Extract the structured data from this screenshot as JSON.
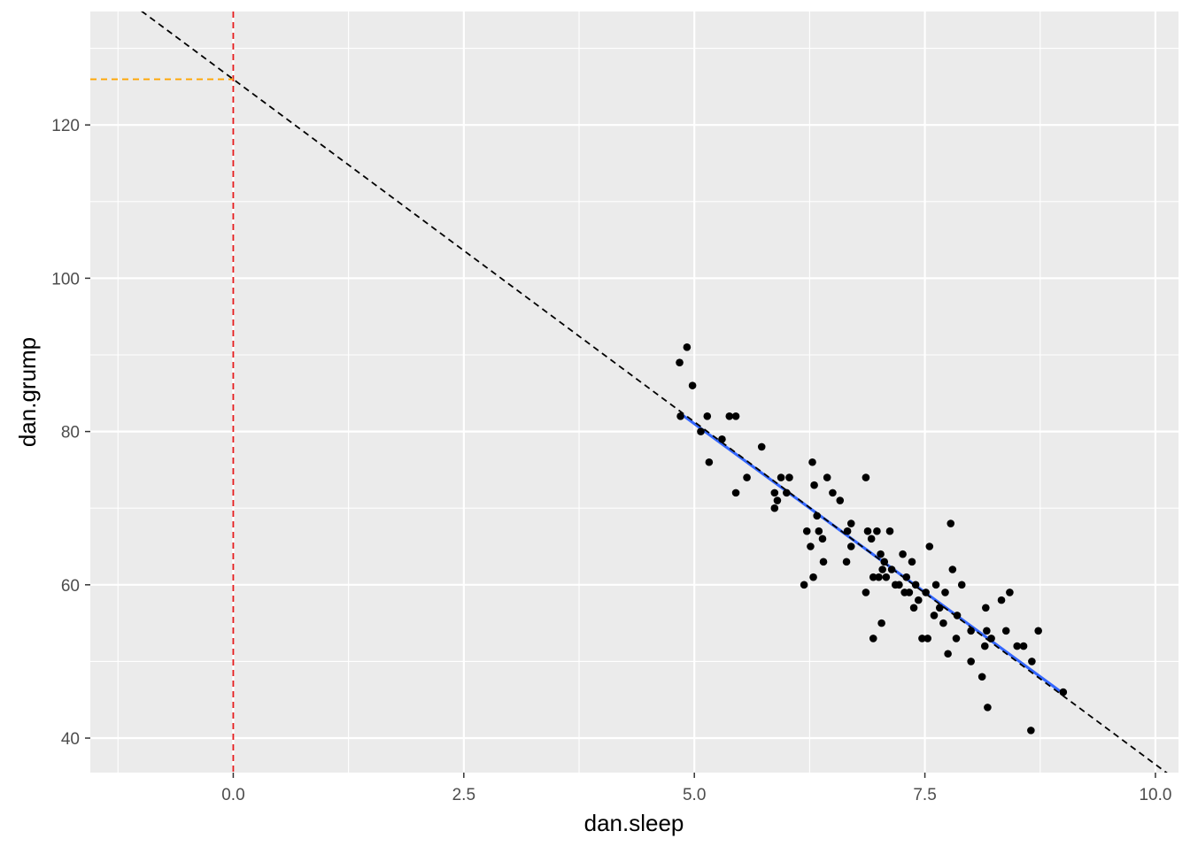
{
  "chart_data": {
    "type": "scatter",
    "xlabel": "dan.sleep",
    "ylabel": "dan.grump",
    "xlim": [
      -1.55,
      10.25
    ],
    "ylim": [
      35.5,
      134.8
    ],
    "x_ticks": [
      0.0,
      2.5,
      5.0,
      7.5,
      10.0
    ],
    "x_tick_labels": [
      "0.0",
      "2.5",
      "5.0",
      "7.5",
      "10.0"
    ],
    "y_ticks": [
      40,
      60,
      80,
      100,
      120
    ],
    "y_tick_labels": [
      "40",
      "60",
      "80",
      "100",
      "120"
    ],
    "grid": true,
    "panel_background": "#ebebeb",
    "grid_color": "#ffffff",
    "points_color": "#000000",
    "series": [
      {
        "type": "scatter",
        "points": [
          [
            4.84,
            89
          ],
          [
            4.92,
            91
          ],
          [
            4.98,
            86
          ],
          [
            4.85,
            82
          ],
          [
            5.07,
            80
          ],
          [
            5.14,
            82
          ],
          [
            5.16,
            76
          ],
          [
            5.3,
            79
          ],
          [
            5.38,
            82
          ],
          [
            5.45,
            82
          ],
          [
            5.45,
            72
          ],
          [
            5.57,
            74
          ],
          [
            5.73,
            78
          ],
          [
            5.87,
            70
          ],
          [
            5.87,
            72
          ],
          [
            5.9,
            71
          ],
          [
            5.94,
            74
          ],
          [
            6.0,
            72
          ],
          [
            6.03,
            74
          ],
          [
            6.19,
            60
          ],
          [
            6.22,
            67
          ],
          [
            6.26,
            65
          ],
          [
            6.28,
            76
          ],
          [
            6.29,
            61
          ],
          [
            6.3,
            73
          ],
          [
            6.33,
            69
          ],
          [
            6.35,
            67
          ],
          [
            6.39,
            66
          ],
          [
            6.4,
            63
          ],
          [
            6.44,
            74
          ],
          [
            6.5,
            72
          ],
          [
            6.58,
            71
          ],
          [
            6.65,
            63
          ],
          [
            6.66,
            67
          ],
          [
            6.7,
            65
          ],
          [
            6.7,
            68
          ],
          [
            6.86,
            74
          ],
          [
            6.86,
            59
          ],
          [
            6.88,
            67
          ],
          [
            6.92,
            66
          ],
          [
            6.94,
            61
          ],
          [
            6.94,
            53
          ],
          [
            6.98,
            67
          ],
          [
            7.0,
            61
          ],
          [
            7.02,
            64
          ],
          [
            7.03,
            55
          ],
          [
            7.04,
            62
          ],
          [
            7.06,
            63
          ],
          [
            7.08,
            61
          ],
          [
            7.12,
            67
          ],
          [
            7.14,
            62
          ],
          [
            7.18,
            60
          ],
          [
            7.22,
            60
          ],
          [
            7.26,
            64
          ],
          [
            7.28,
            59
          ],
          [
            7.3,
            61
          ],
          [
            7.33,
            59
          ],
          [
            7.36,
            63
          ],
          [
            7.38,
            57
          ],
          [
            7.4,
            60
          ],
          [
            7.43,
            58
          ],
          [
            7.47,
            53
          ],
          [
            7.51,
            59
          ],
          [
            7.53,
            53
          ],
          [
            7.55,
            65
          ],
          [
            7.6,
            56
          ],
          [
            7.62,
            60
          ],
          [
            7.66,
            57
          ],
          [
            7.7,
            55
          ],
          [
            7.72,
            59
          ],
          [
            7.75,
            51
          ],
          [
            7.78,
            68
          ],
          [
            7.8,
            62
          ],
          [
            7.84,
            53
          ],
          [
            7.85,
            56
          ],
          [
            7.9,
            60
          ],
          [
            8.0,
            54
          ],
          [
            8.0,
            50
          ],
          [
            8.12,
            48
          ],
          [
            8.15,
            52
          ],
          [
            8.16,
            57
          ],
          [
            8.17,
            54
          ],
          [
            8.18,
            44
          ],
          [
            8.22,
            53
          ],
          [
            8.33,
            58
          ],
          [
            8.38,
            54
          ],
          [
            8.42,
            59
          ],
          [
            8.5,
            52
          ],
          [
            8.57,
            52
          ],
          [
            8.65,
            41
          ],
          [
            8.66,
            50
          ],
          [
            8.73,
            54
          ],
          [
            9.0,
            46
          ]
        ]
      },
      {
        "type": "line",
        "style": "regression",
        "color": "#3366ff",
        "points": [
          [
            4.84,
            82.42
          ],
          [
            9.0,
            45.82
          ]
        ]
      },
      {
        "type": "abline",
        "style": "dashed",
        "color": "#000000",
        "intercept": 125.96,
        "slope": -8.94
      },
      {
        "type": "vline",
        "style": "dashed",
        "color": "#e41a1c",
        "x": 0
      },
      {
        "type": "hsegment",
        "style": "dashed",
        "color": "#ffa500",
        "y": 125.96,
        "x_from": -1.55,
        "x_to": 0
      }
    ]
  }
}
